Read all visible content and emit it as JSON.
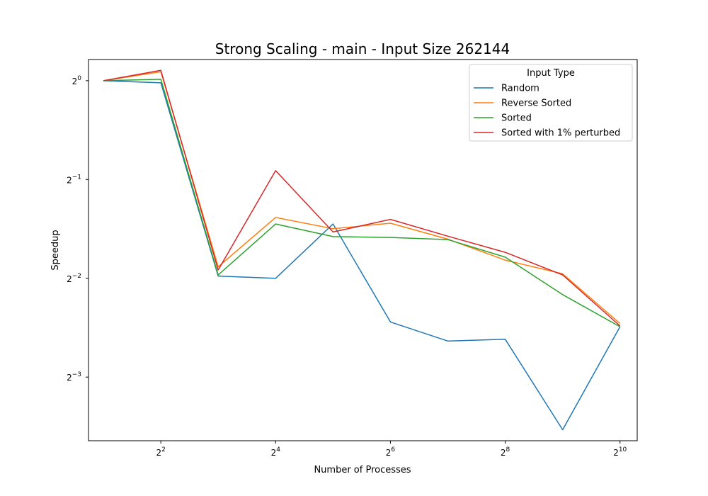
{
  "chart_data": {
    "type": "line",
    "title": "Strong Scaling - main - Input Size 262144",
    "xlabel": "Number of Processes",
    "ylabel": "Speedup",
    "x_scale": "log2",
    "y_scale": "log2",
    "x": [
      2,
      4,
      8,
      16,
      32,
      64,
      128,
      256,
      512,
      1024
    ],
    "xlim": [
      1.67,
      1260
    ],
    "ylim": [
      0.08,
      1.16
    ],
    "x_ticks": [
      {
        "value": 4,
        "base": "2",
        "exp": "2"
      },
      {
        "value": 16,
        "base": "2",
        "exp": "4"
      },
      {
        "value": 64,
        "base": "2",
        "exp": "6"
      },
      {
        "value": 256,
        "base": "2",
        "exp": "8"
      },
      {
        "value": 1024,
        "base": "2",
        "exp": "10"
      }
    ],
    "y_ticks": [
      {
        "value": 1,
        "base": "2",
        "exp": "0"
      },
      {
        "value": 0.5,
        "base": "2",
        "exp": "−1"
      },
      {
        "value": 0.25,
        "base": "2",
        "exp": "−2"
      },
      {
        "value": 0.125,
        "base": "2",
        "exp": "−3"
      }
    ],
    "grid": false,
    "legend": {
      "title": "Input Type",
      "placement": "top-right"
    },
    "series": [
      {
        "name": "Random",
        "color": "#1f77b4",
        "values": [
          1.0,
          0.985,
          0.254,
          0.25,
          0.366,
          0.184,
          0.161,
          0.163,
          0.0864,
          0.178
        ]
      },
      {
        "name": "Reverse Sorted",
        "color": "#ff7f0e",
        "values": [
          1.0,
          1.065,
          0.271,
          0.383,
          0.354,
          0.368,
          0.329,
          0.284,
          0.258,
          0.182
        ]
      },
      {
        "name": "Sorted",
        "color": "#2ca02c",
        "values": [
          1.0,
          1.01,
          0.256,
          0.366,
          0.335,
          0.333,
          0.328,
          0.29,
          0.223,
          0.178
        ]
      },
      {
        "name": "Sorted with 1% perturbed",
        "color": "#d62728",
        "values": [
          1.0,
          1.075,
          0.265,
          0.532,
          0.346,
          0.378,
          0.336,
          0.3,
          0.256,
          0.179
        ]
      }
    ]
  }
}
